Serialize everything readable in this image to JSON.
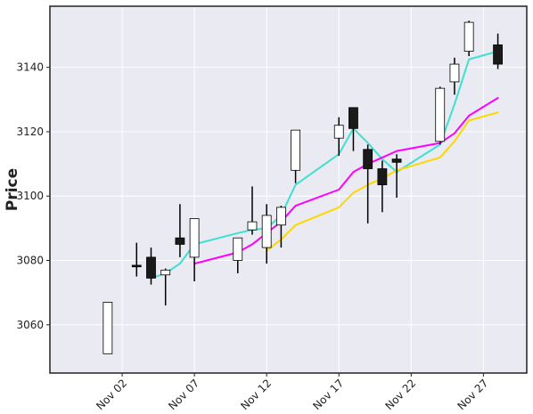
{
  "chart_data": {
    "type": "candlestick",
    "title": "",
    "xlabel": "",
    "ylabel": "Price",
    "ylim": [
      3045,
      3159
    ],
    "xlim": [
      "2020-10-28",
      "2020-11-30"
    ],
    "grid": true,
    "x_ticks": [
      {
        "date": "2020-11-02",
        "label": "Nov 02"
      },
      {
        "date": "2020-11-07",
        "label": "Nov 07"
      },
      {
        "date": "2020-11-12",
        "label": "Nov 12"
      },
      {
        "date": "2020-11-17",
        "label": "Nov 17"
      },
      {
        "date": "2020-11-22",
        "label": "Nov 22"
      },
      {
        "date": "2020-11-27",
        "label": "Nov 27"
      }
    ],
    "y_ticks": [
      3060,
      3080,
      3100,
      3120,
      3140
    ],
    "candles": [
      {
        "date": "2020-11-01",
        "open": 3051,
        "high": 3067,
        "low": 3051,
        "close": 3067
      },
      {
        "date": "2020-11-03",
        "open": 3078.5,
        "high": 3085.5,
        "low": 3075,
        "close": 3078
      },
      {
        "date": "2020-11-04",
        "open": 3081,
        "high": 3084,
        "low": 3072.5,
        "close": 3074.5
      },
      {
        "date": "2020-11-05",
        "open": 3075.5,
        "high": 3077.5,
        "low": 3066,
        "close": 3077
      },
      {
        "date": "2020-11-06",
        "open": 3087,
        "high": 3097.5,
        "low": 3081,
        "close": 3085
      },
      {
        "date": "2020-11-07",
        "open": 3081,
        "high": 3093,
        "low": 3073.5,
        "close": 3093
      },
      {
        "date": "2020-11-10",
        "open": 3080,
        "high": 3087,
        "low": 3076,
        "close": 3087
      },
      {
        "date": "2020-11-11",
        "open": 3089.5,
        "high": 3103,
        "low": 3088,
        "close": 3092
      },
      {
        "date": "2020-11-12",
        "open": 3084,
        "high": 3097.5,
        "low": 3079,
        "close": 3094
      },
      {
        "date": "2020-11-13",
        "open": 3091,
        "high": 3097,
        "low": 3084,
        "close": 3096.5
      },
      {
        "date": "2020-11-14",
        "open": 3108,
        "high": 3120.5,
        "low": 3104,
        "close": 3120.5
      },
      {
        "date": "2020-11-17",
        "open": 3118,
        "high": 3124.5,
        "low": 3112.5,
        "close": 3122
      },
      {
        "date": "2020-11-18",
        "open": 3127.5,
        "high": 3127.5,
        "low": 3114,
        "close": 3121
      },
      {
        "date": "2020-11-19",
        "open": 3114.5,
        "high": 3116,
        "low": 3091.5,
        "close": 3108.5
      },
      {
        "date": "2020-11-20",
        "open": 3108.5,
        "high": 3111,
        "low": 3095,
        "close": 3103.5
      },
      {
        "date": "2020-11-21",
        "open": 3111.5,
        "high": 3113,
        "low": 3099.5,
        "close": 3110.5
      },
      {
        "date": "2020-11-24",
        "open": 3117,
        "high": 3134,
        "low": 3116,
        "close": 3133.5
      },
      {
        "date": "2020-11-25",
        "open": 3135.5,
        "high": 3143,
        "low": 3131.5,
        "close": 3141
      },
      {
        "date": "2020-11-26",
        "open": 3145,
        "high": 3154.5,
        "low": 3143.5,
        "close": 3154
      },
      {
        "date": "2020-11-28",
        "open": 3147,
        "high": 3150.5,
        "low": 3139.5,
        "close": 3141
      }
    ],
    "series": [
      {
        "color": "#40e0d0",
        "points": [
          [
            "2020-11-04",
            3074.5
          ],
          [
            "2020-11-05",
            3076
          ],
          [
            "2020-11-06",
            3079
          ],
          [
            "2020-11-07",
            3085
          ],
          [
            "2020-11-10",
            3088.5
          ],
          [
            "2020-11-11",
            3089.5
          ],
          [
            "2020-11-12",
            3090
          ],
          [
            "2020-11-13",
            3094
          ],
          [
            "2020-11-14",
            3103.5
          ],
          [
            "2020-11-17",
            3113
          ],
          [
            "2020-11-18",
            3121
          ],
          [
            "2020-11-19",
            3116.5
          ],
          [
            "2020-11-20",
            3111.5
          ],
          [
            "2020-11-21",
            3107.5
          ],
          [
            "2020-11-24",
            3116
          ],
          [
            "2020-11-25",
            3128.5
          ],
          [
            "2020-11-26",
            3142.5
          ],
          [
            "2020-11-28",
            3145
          ]
        ]
      },
      {
        "color": "#ff00ff",
        "points": [
          [
            "2020-11-07",
            3079
          ],
          [
            "2020-11-10",
            3082.5
          ],
          [
            "2020-11-11",
            3085
          ],
          [
            "2020-11-12",
            3088.5
          ],
          [
            "2020-11-13",
            3092
          ],
          [
            "2020-11-14",
            3097
          ],
          [
            "2020-11-17",
            3102
          ],
          [
            "2020-11-18",
            3107.5
          ],
          [
            "2020-11-19",
            3110
          ],
          [
            "2020-11-20",
            3112
          ],
          [
            "2020-11-21",
            3114
          ],
          [
            "2020-11-24",
            3116.5
          ],
          [
            "2020-11-25",
            3119.5
          ],
          [
            "2020-11-26",
            3125
          ],
          [
            "2020-11-28",
            3130.5
          ]
        ]
      },
      {
        "color": "#ffd700",
        "points": [
          [
            "2020-11-12",
            3083
          ],
          [
            "2020-11-13",
            3086.5
          ],
          [
            "2020-11-14",
            3091
          ],
          [
            "2020-11-17",
            3096.5
          ],
          [
            "2020-11-18",
            3101
          ],
          [
            "2020-11-19",
            3103.5
          ],
          [
            "2020-11-20",
            3105.5
          ],
          [
            "2020-11-21",
            3108
          ],
          [
            "2020-11-24",
            3112
          ],
          [
            "2020-11-25",
            3117
          ],
          [
            "2020-11-26",
            3123.5
          ],
          [
            "2020-11-28",
            3126
          ]
        ]
      }
    ],
    "colors": {
      "background": "#eaeaf2",
      "grid": "#ffffff",
      "up_fill": "#ffffff",
      "down_fill": "#1a1a1a",
      "edge": "#000000",
      "frame": "#222222"
    }
  }
}
